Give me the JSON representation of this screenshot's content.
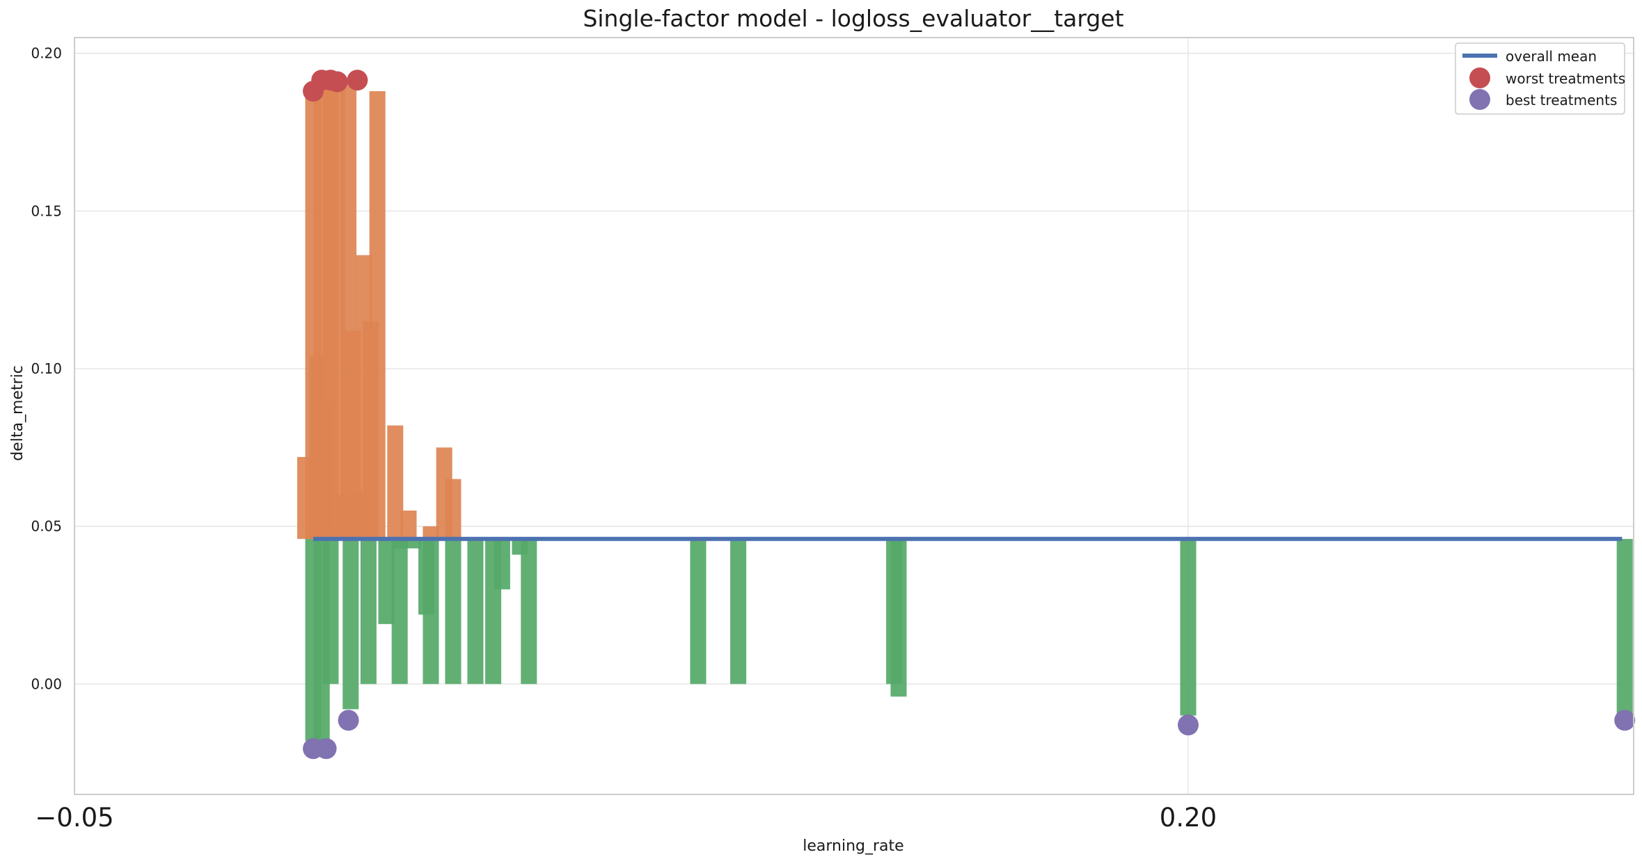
{
  "chart_data": {
    "type": "bar",
    "title": "Single-factor model - logloss_evaluator__target",
    "xlabel": "learning_rate",
    "ylabel": "delta_metric",
    "xlim": [
      -0.05,
      0.3
    ],
    "ylim": [
      -0.035,
      0.205
    ],
    "x_ticks": [
      -0.05,
      0.2
    ],
    "x_tick_labels": [
      "−0.05",
      "0.20"
    ],
    "y_ticks": [
      0.0,
      0.05,
      0.1,
      0.15,
      0.2
    ],
    "y_tick_labels": [
      "0.00",
      "0.05",
      "0.10",
      "0.15",
      "0.20"
    ],
    "grid": true,
    "legend_position": "top-right",
    "baseline": 0.046,
    "overall_mean": {
      "name": "overall mean",
      "color": "#4c72b0",
      "x_range": [
        0.0036,
        0.2974
      ],
      "value": 0.046
    },
    "bar_width": 0.0036,
    "colors": {
      "above_mean": "#dd8452",
      "below_mean": "#55a868",
      "worst_marker": "#c44e52",
      "best_marker": "#8172b2",
      "grid": "#e5e5e5",
      "frame": "#cccccc"
    },
    "bars_above": [
      {
        "x": 0.0018,
        "value": 0.072
      },
      {
        "x": 0.0036,
        "value": 0.188
      },
      {
        "x": 0.0045,
        "value": 0.104
      },
      {
        "x": 0.0055,
        "value": 0.191
      },
      {
        "x": 0.0065,
        "value": 0.089
      },
      {
        "x": 0.0075,
        "value": 0.191
      },
      {
        "x": 0.009,
        "value": 0.191
      },
      {
        "x": 0.0105,
        "value": 0.06
      },
      {
        "x": 0.0115,
        "value": 0.191
      },
      {
        "x": 0.0125,
        "value": 0.112
      },
      {
        "x": 0.014,
        "value": 0.061
      },
      {
        "x": 0.015,
        "value": 0.136
      },
      {
        "x": 0.0165,
        "value": 0.115
      },
      {
        "x": 0.018,
        "value": 0.188
      },
      {
        "x": 0.022,
        "value": 0.082
      },
      {
        "x": 0.025,
        "value": 0.055
      },
      {
        "x": 0.03,
        "value": 0.05
      },
      {
        "x": 0.033,
        "value": 0.075
      },
      {
        "x": 0.035,
        "value": 0.065
      }
    ],
    "bars_below": [
      {
        "x": 0.0036,
        "value": -0.018
      },
      {
        "x": 0.0055,
        "value": -0.018
      },
      {
        "x": 0.0075,
        "value": 0.0
      },
      {
        "x": 0.012,
        "value": -0.008
      },
      {
        "x": 0.016,
        "value": 0.0
      },
      {
        "x": 0.02,
        "value": 0.019
      },
      {
        "x": 0.023,
        "value": 0.0
      },
      {
        "x": 0.023,
        "value": 0.043
      },
      {
        "x": 0.026,
        "value": 0.043
      },
      {
        "x": 0.029,
        "value": 0.022
      },
      {
        "x": 0.03,
        "value": 0.0
      },
      {
        "x": 0.035,
        "value": 0.0
      },
      {
        "x": 0.04,
        "value": 0.0
      },
      {
        "x": 0.044,
        "value": 0.0
      },
      {
        "x": 0.046,
        "value": 0.03
      },
      {
        "x": 0.05,
        "value": 0.041
      },
      {
        "x": 0.052,
        "value": 0.0
      },
      {
        "x": 0.09,
        "value": 0.0
      },
      {
        "x": 0.099,
        "value": 0.0
      },
      {
        "x": 0.134,
        "value": 0.0
      },
      {
        "x": 0.135,
        "value": -0.004
      },
      {
        "x": 0.2,
        "value": -0.01
      },
      {
        "x": 0.298,
        "value": -0.01
      }
    ],
    "worst_treatments": {
      "name": "worst treatments",
      "points": [
        {
          "x": 0.0036,
          "value": 0.188
        },
        {
          "x": 0.0055,
          "value": 0.1915
        },
        {
          "x": 0.0075,
          "value": 0.1915
        },
        {
          "x": 0.009,
          "value": 0.191
        },
        {
          "x": 0.0135,
          "value": 0.1915
        }
      ]
    },
    "best_treatments": {
      "name": "best treatments",
      "points": [
        {
          "x": 0.0036,
          "value": -0.0205
        },
        {
          "x": 0.0065,
          "value": -0.0205
        },
        {
          "x": 0.0115,
          "value": -0.0115
        },
        {
          "x": 0.2,
          "value": -0.013
        },
        {
          "x": 0.298,
          "value": -0.0115
        }
      ]
    }
  }
}
